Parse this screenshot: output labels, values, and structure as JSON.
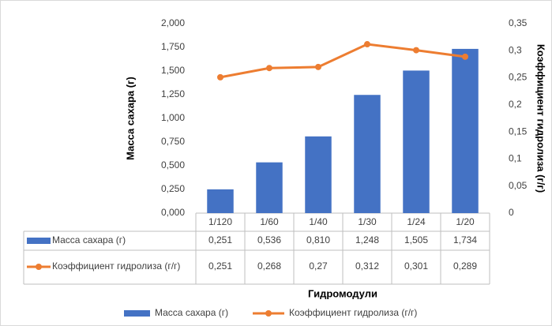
{
  "chart_data": {
    "type": "bar_line",
    "categories": [
      "1/120",
      "1/60",
      "1/40",
      "1/30",
      "1/24",
      "1/20"
    ],
    "series": [
      {
        "name": "Масса сахара (г)",
        "color": "#4472c4",
        "type": "bar",
        "values": [
          0.251,
          0.536,
          0.81,
          1.248,
          1.505,
          1.734
        ],
        "value_labels": [
          "0,251",
          "0,536",
          "0,810",
          "1,248",
          "1,505",
          "1,734"
        ]
      },
      {
        "name": "Коэффициент гидролиза  (г/г)",
        "color": "#ed7d31",
        "type": "line",
        "axis": "y2",
        "values": [
          0.251,
          0.268,
          0.27,
          0.312,
          0.301,
          0.289
        ],
        "value_labels": [
          "0,251",
          "0,268",
          "0,27",
          "0,312",
          "0,301",
          "0,289"
        ]
      }
    ],
    "y_label": "Масса сахара (г)",
    "y2_label": "Коэффициент гидролиза  (г/г)",
    "x_label": "Гидромодули",
    "ylim": [
      0,
      2
    ],
    "yticks": [
      {
        "value": 0,
        "label": "0,000"
      },
      {
        "value": 0.25,
        "label": "0,250"
      },
      {
        "value": 0.5,
        "label": "0,500"
      },
      {
        "value": 0.75,
        "label": "0,750"
      },
      {
        "value": 1,
        "label": "1,000"
      },
      {
        "value": 1.25,
        "label": "1,250"
      },
      {
        "value": 1.5,
        "label": "1,500"
      },
      {
        "value": 1.75,
        "label": "1,750"
      },
      {
        "value": 2,
        "label": "2,000"
      }
    ],
    "y2lim": [
      0,
      0.35
    ],
    "y2ticks": [
      0,
      {
        "value": 0.05,
        "label": "0,05"
      },
      {
        "value": 0.1,
        "label": "0,1"
      },
      {
        "value": 0.15,
        "label": "0,15"
      },
      {
        "value": 0.2,
        "label": "0,2"
      },
      {
        "value": 0.25,
        "label": "0,25"
      },
      {
        "value": 0.3,
        "label": "0,3"
      },
      {
        "value": 0.35,
        "label": "0,35"
      }
    ],
    "legend": "bottom"
  }
}
